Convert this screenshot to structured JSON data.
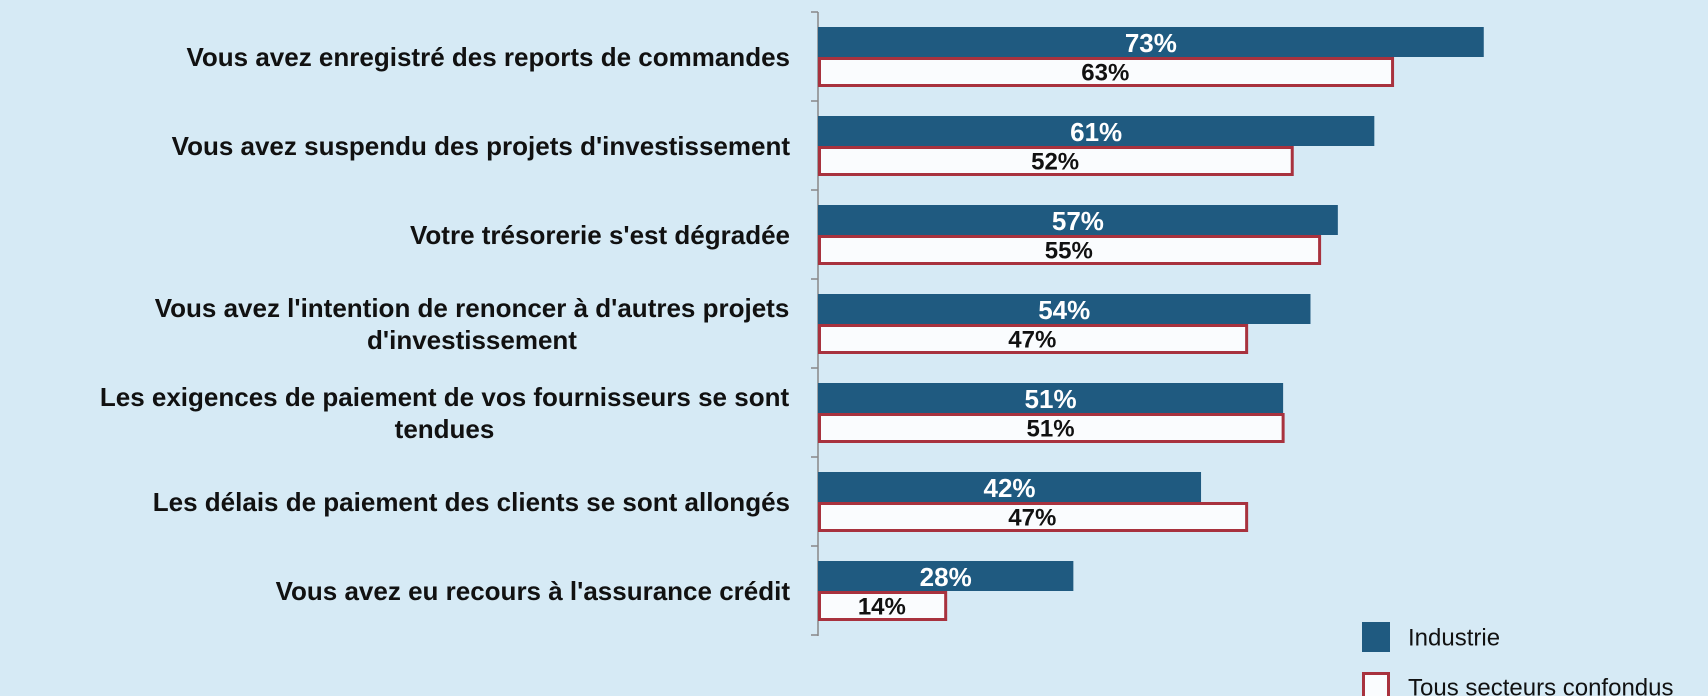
{
  "chart_data": {
    "type": "bar",
    "orientation": "horizontal",
    "categories": [
      "Vous avez enregistré des reports de commandes",
      "Vous avez suspendu des projets d'investissement",
      "Votre trésorerie s'est dégradée",
      "Vous avez l'intention de renoncer à d'autres projets d'investissement",
      "Les exigences de paiement de vos fournisseurs se sont tendues",
      "Les délais de paiement des clients se sont allongés",
      "Vous avez eu recours à l'assurance crédit"
    ],
    "series": [
      {
        "name": "Industrie",
        "color": "#1f5a80",
        "values": [
          73,
          61,
          57,
          54,
          51,
          42,
          28
        ],
        "value_labels": [
          "73%",
          "61%",
          "57%",
          "54%",
          "51%",
          "42%",
          "28%"
        ]
      },
      {
        "name": "Tous secteurs confondus",
        "color": "#a8323e",
        "values": [
          63,
          52,
          55,
          47,
          51,
          47,
          14
        ],
        "value_labels": [
          "63%",
          "52%",
          "55%",
          "47%",
          "51%",
          "47%",
          "14%"
        ]
      }
    ],
    "legend": "bottom-right"
  }
}
